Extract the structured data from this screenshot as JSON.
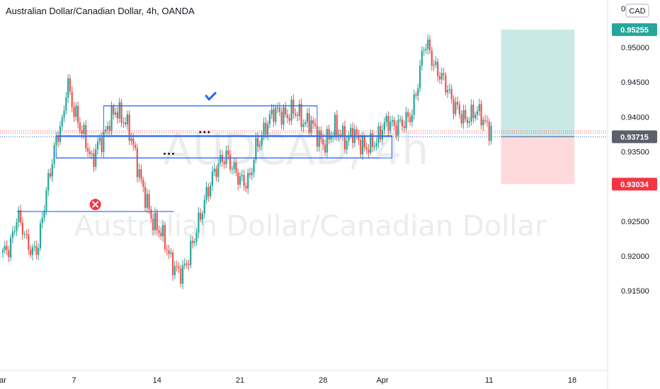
{
  "header": {
    "title": "Australian Dollar/Canadian Dollar, 4h, OANDA"
  },
  "watermark": {
    "symbol": "AUDCAD, 4h",
    "name": "Australian Dollar/Canadian Dollar"
  },
  "currency_button": {
    "label": "CAD",
    "prefix": "0"
  },
  "colors": {
    "up": "#26a69a",
    "down": "#ef5350",
    "level": "#2962ff",
    "profit": "#b2dfdb",
    "loss": "#ffcdd2"
  },
  "icons": {
    "check": "check-icon",
    "cross": "cross-icon",
    "ellipsis": "ellipsis-icon"
  },
  "chart_data": {
    "type": "candlestick",
    "ylim": [
      0.9135,
      0.9545
    ],
    "y_ticks": [
      "0.95000",
      "0.94500",
      "0.94000",
      "0.93500",
      "0.92500",
      "0.92000",
      "0.91500"
    ],
    "x_ticks": [
      {
        "label": "ar",
        "t": 0.0
      },
      {
        "label": "7",
        "t": 6.0
      },
      {
        "label": "14",
        "t": 13.0
      },
      {
        "label": "21",
        "t": 20.0
      },
      {
        "label": "28",
        "t": 27.0
      },
      {
        "label": "Apr",
        "t": 32.0
      },
      {
        "label": "11",
        "t": 41.0
      },
      {
        "label": "18",
        "t": 48.0
      }
    ],
    "price_labels": [
      {
        "value": 0.95255,
        "text": "0.95255",
        "kind": "target"
      },
      {
        "value": 0.93715,
        "text": "0.93715",
        "kind": "current"
      },
      {
        "value": 0.93034,
        "text": "0.93034",
        "kind": "stop"
      }
    ],
    "levels": [
      {
        "t0": 8.5,
        "t1": 26.5,
        "y": 0.9416,
        "mark": "check"
      },
      {
        "t0": 4.5,
        "t1": 32.8,
        "y": 0.9372,
        "mark": "ellipsis",
        "mark_t": 17.0
      },
      {
        "t0": 4.5,
        "t1": 31.8,
        "y": 0.9341,
        "mark": "ellipsis",
        "mark_t": 14.0
      },
      {
        "t0": 1.2,
        "t1": 14.4,
        "y": 0.9264,
        "mark": "cross"
      }
    ],
    "level_boxes": [
      {
        "t0": 8.5,
        "t1": 26.5,
        "y0": 0.9416,
        "y1": 0.9373
      },
      {
        "t0": 4.5,
        "t1": 32.8,
        "y0": 0.9373,
        "y1": 0.9341
      }
    ],
    "reference_lines": [
      0.93715,
      0.9377,
      0.938
    ],
    "position": {
      "t0": 42.0,
      "t1": 48.2,
      "entry": 0.93715,
      "target": 0.95255,
      "stop": 0.93034
    },
    "path": [
      [
        0.0,
        0.9205
      ],
      [
        0.6,
        0.9212
      ],
      [
        1.2,
        0.9258
      ],
      [
        1.6,
        0.9245
      ],
      [
        2.0,
        0.922
      ],
      [
        2.5,
        0.9205
      ],
      [
        3.0,
        0.9215
      ],
      [
        3.4,
        0.9265
      ],
      [
        3.8,
        0.9305
      ],
      [
        4.3,
        0.935
      ],
      [
        4.7,
        0.938
      ],
      [
        5.1,
        0.9395
      ],
      [
        5.4,
        0.9455
      ],
      [
        5.8,
        0.942
      ],
      [
        6.3,
        0.9395
      ],
      [
        6.9,
        0.937
      ],
      [
        7.5,
        0.9335
      ],
      [
        8.0,
        0.936
      ],
      [
        8.5,
        0.937
      ],
      [
        9.0,
        0.9395
      ],
      [
        9.5,
        0.941
      ],
      [
        10.0,
        0.94
      ],
      [
        10.6,
        0.9385
      ],
      [
        11.1,
        0.935
      ],
      [
        11.6,
        0.931
      ],
      [
        12.1,
        0.928
      ],
      [
        12.6,
        0.925
      ],
      [
        13.1,
        0.924
      ],
      [
        13.6,
        0.9225
      ],
      [
        14.1,
        0.9195
      ],
      [
        14.6,
        0.918
      ],
      [
        15.1,
        0.9175
      ],
      [
        15.6,
        0.9195
      ],
      [
        16.2,
        0.923
      ],
      [
        16.7,
        0.926
      ],
      [
        17.2,
        0.929
      ],
      [
        17.8,
        0.932
      ],
      [
        18.3,
        0.9335
      ],
      [
        18.8,
        0.9345
      ],
      [
        19.3,
        0.933
      ],
      [
        19.8,
        0.9315
      ],
      [
        20.3,
        0.9305
      ],
      [
        20.8,
        0.931
      ],
      [
        21.3,
        0.9355
      ],
      [
        21.9,
        0.9375
      ],
      [
        22.4,
        0.9395
      ],
      [
        22.9,
        0.941
      ],
      [
        23.4,
        0.9405
      ],
      [
        23.9,
        0.94
      ],
      [
        24.4,
        0.941
      ],
      [
        24.9,
        0.9405
      ],
      [
        25.4,
        0.939
      ],
      [
        25.9,
        0.9395
      ],
      [
        26.5,
        0.9375
      ],
      [
        27.0,
        0.936
      ],
      [
        27.5,
        0.937
      ],
      [
        28.0,
        0.9385
      ],
      [
        28.5,
        0.9375
      ],
      [
        29.0,
        0.9365
      ],
      [
        29.5,
        0.938
      ],
      [
        30.0,
        0.9365
      ],
      [
        30.5,
        0.9355
      ],
      [
        31.0,
        0.936
      ],
      [
        31.5,
        0.9365
      ],
      [
        32.0,
        0.9385
      ],
      [
        32.5,
        0.9395
      ],
      [
        33.0,
        0.9385
      ],
      [
        33.5,
        0.939
      ],
      [
        34.0,
        0.9395
      ],
      [
        34.5,
        0.9405
      ],
      [
        35.0,
        0.945
      ],
      [
        35.5,
        0.9505
      ],
      [
        35.9,
        0.95
      ],
      [
        36.4,
        0.947
      ],
      [
        36.9,
        0.946
      ],
      [
        37.4,
        0.9445
      ],
      [
        37.9,
        0.942
      ],
      [
        38.4,
        0.941
      ],
      [
        38.9,
        0.9395
      ],
      [
        39.4,
        0.94
      ],
      [
        39.9,
        0.941
      ],
      [
        40.4,
        0.94
      ],
      [
        40.8,
        0.9385
      ],
      [
        41.2,
        0.938
      ]
    ]
  }
}
